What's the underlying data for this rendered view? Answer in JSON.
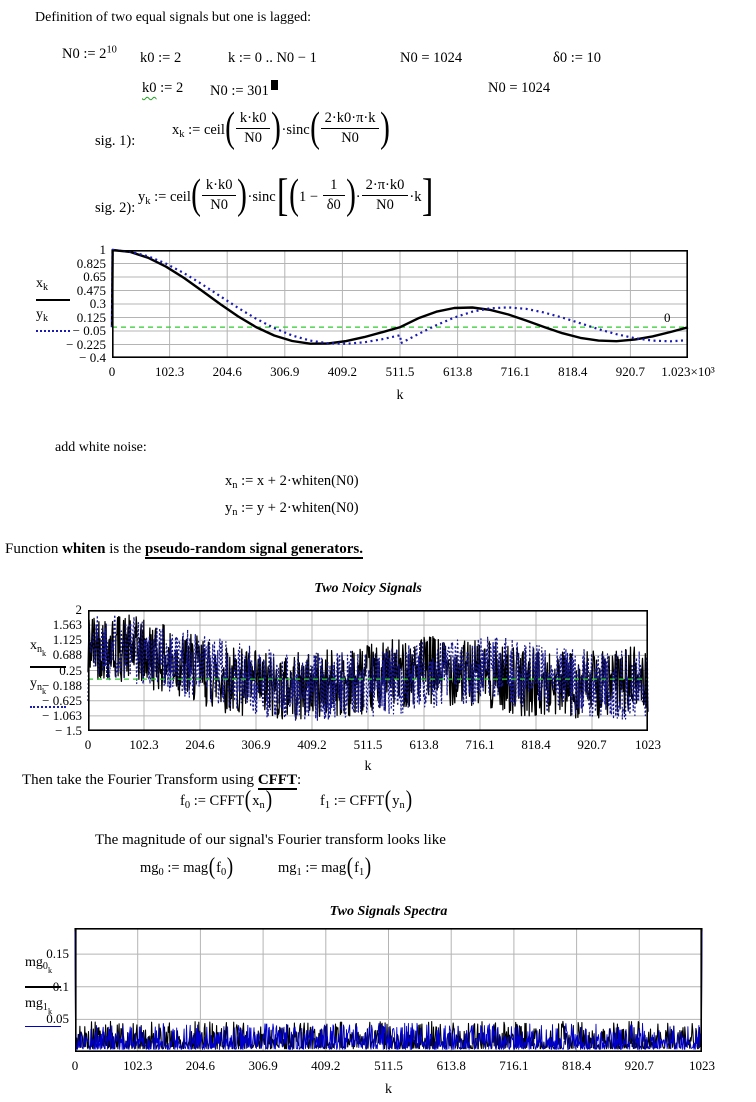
{
  "intro": {
    "title": "Definition of two equal signals but one is lagged:"
  },
  "row1": {
    "n0_base": "N0 := 2",
    "n0_exp": "10",
    "k0": "k0 := 2",
    "k_range": "k := 0 .. N0 − 1",
    "n0_eval": "N0 = 1024",
    "d0": "δ0 := 10"
  },
  "row2": {
    "k0_var": "k0",
    "k0_rest": " := 2",
    "n0_def": "N0 := 301",
    "n0_eval": "N0 = 1024"
  },
  "sig1": {
    "label": "sig. 1):",
    "lhs": "x",
    "lhs_sub": "k",
    "assign": " := ",
    "fn1": "ceil",
    "f1_num": "k·k0",
    "f1_den": "N0",
    "dot": "·",
    "fn2": "sinc",
    "f2_num": "2·k0·π·k",
    "f2_den": "N0"
  },
  "sig2": {
    "label": "sig. 2):",
    "lhs": "y",
    "lhs_sub": "k",
    "assign": " := ",
    "fn1": "ceil",
    "f1_num": "k·k0",
    "f1_den": "N0",
    "dot": "·",
    "fn2": "sinc",
    "one": "1",
    "minus": " − ",
    "frac1_num": "1",
    "frac1_den": "δ0",
    "dot2": "·",
    "frac2_num": "2·π·k0",
    "frac2_den": "N0",
    "k_end": "·k"
  },
  "noise": {
    "heading": "add white noise:",
    "xn_main": "x",
    "xn_sub": "n",
    "xn_rest": " := x + 2·whiten(N0)",
    "yn_main": "y",
    "yn_sub": "n",
    "yn_rest": " := y + 2·whiten(N0)",
    "footer_pre": "Function ",
    "footer_bold": "whiten",
    "footer_mid": " is the ",
    "footer_link": "pseudo-random signal generators."
  },
  "fft": {
    "line_pre": "Then take the Fourier Transform using ",
    "line_bold": "CFFT",
    "line_post": ":",
    "f0_main": "f",
    "f0_sub": "0",
    "f0_op": " := CFFT",
    "f0_arg_main": "x",
    "f0_arg_sub": "n",
    "f1_main": "f",
    "f1_sub": "1",
    "f1_op": " := CFFT",
    "f1_arg_main": "y",
    "f1_arg_sub": "n",
    "mag_line": "The magnitude of our signal's Fourier transform looks like",
    "mg0_main": "mg",
    "mg0_sub": "0",
    "mg0_op": " := mag",
    "mg0_arg_main": "f",
    "mg0_arg_sub": "0",
    "mg1_main": "mg",
    "mg1_sub": "1",
    "mg1_op": " := mag",
    "mg1_arg_main": "f",
    "mg1_arg_sub": "1"
  },
  "chart_data": [
    {
      "type": "line",
      "title": "",
      "xlabel": "k",
      "xlim": [
        0,
        1023
      ],
      "ylim": [
        -0.4,
        1
      ],
      "grid": true,
      "legend_position": "left",
      "xticks": {
        "values": [
          0,
          102.3,
          204.6,
          306.9,
          409.2,
          511.5,
          613.8,
          716.1,
          818.4,
          920.7,
          1023
        ],
        "labels": [
          "0",
          "102.3",
          "204.6",
          "306.9",
          "409.2",
          "511.5",
          "613.8",
          "716.1",
          "818.4",
          "920.7",
          "1.023×10³"
        ]
      },
      "yticks": {
        "values": [
          1,
          0.825,
          0.65,
          0.475,
          0.3,
          0.125,
          -0.05,
          -0.225,
          -0.4
        ],
        "labels": [
          "1",
          "0.825",
          "0.65",
          "0.475",
          "0.3",
          "0.125",
          "− 0.05",
          "− 0.225",
          "− 0.4"
        ]
      },
      "marker": {
        "y": 0,
        "label": "0",
        "color": "#2ecc2e",
        "on_top": false
      },
      "legend": [
        {
          "main": "x",
          "sub": "k"
        },
        {
          "main": "y",
          "sub": "k"
        }
      ],
      "series": [
        {
          "name": "xk",
          "kind": "points",
          "color": "#000000",
          "width": 2.4,
          "dash": null,
          "points": [
            [
              0,
              0
            ],
            [
              1,
              1
            ],
            [
              32,
              0.975
            ],
            [
              64,
              0.9
            ],
            [
              96,
              0.784
            ],
            [
              128,
              0.637
            ],
            [
              160,
              0.47
            ],
            [
              192,
              0.3
            ],
            [
              224,
              0.139
            ],
            [
              256,
              0
            ],
            [
              288,
              -0.108
            ],
            [
              320,
              -0.18
            ],
            [
              352,
              -0.214
            ],
            [
              384,
              -0.212
            ],
            [
              416,
              -0.181
            ],
            [
              448,
              -0.129
            ],
            [
              480,
              -0.065
            ],
            [
              512,
              0
            ],
            [
              544,
              0.115
            ],
            [
              576,
              0.2
            ],
            [
              608,
              0.248
            ],
            [
              640,
              0.255
            ],
            [
              672,
              0.224
            ],
            [
              704,
              0.164
            ],
            [
              736,
              0.085
            ],
            [
              768,
              0
            ],
            [
              800,
              -0.078
            ],
            [
              832,
              -0.139
            ],
            [
              864,
              -0.174
            ],
            [
              896,
              -0.182
            ],
            [
              928,
              -0.162
            ],
            [
              960,
              -0.12
            ],
            [
              992,
              -0.063
            ],
            [
              1023,
              -0.002
            ]
          ]
        },
        {
          "name": "yk",
          "kind": "points",
          "color": "#1a1ab4",
          "width": 2.2,
          "dash": "2 3.5",
          "points": [
            [
              0,
              0
            ],
            [
              1,
              1
            ],
            [
              32,
              0.979
            ],
            [
              64,
              0.919
            ],
            [
              96,
              0.823
            ],
            [
              128,
              0.699
            ],
            [
              160,
              0.555
            ],
            [
              192,
              0.402
            ],
            [
              224,
              0.25
            ],
            [
              256,
              0.109
            ],
            [
              288,
              -0.012
            ],
            [
              320,
              -0.108
            ],
            [
              352,
              -0.175
            ],
            [
              384,
              -0.21
            ],
            [
              416,
              -0.216
            ],
            [
              448,
              -0.197
            ],
            [
              480,
              -0.156
            ],
            [
              512,
              -0.104
            ],
            [
              513,
              -0.208
            ],
            [
              544,
              -0.09
            ],
            [
              576,
              0.025
            ],
            [
              608,
              0.125
            ],
            [
              640,
              0.2
            ],
            [
              672,
              0.244
            ],
            [
              704,
              0.256
            ],
            [
              736,
              0.237
            ],
            [
              768,
              0.189
            ],
            [
              800,
              0.124
            ],
            [
              832,
              0.05
            ],
            [
              864,
              -0.025
            ],
            [
              896,
              -0.092
            ],
            [
              928,
              -0.142
            ],
            [
              960,
              -0.174
            ],
            [
              992,
              -0.183
            ],
            [
              1023,
              -0.169
            ]
          ]
        }
      ]
    },
    {
      "type": "line",
      "title": "Two Noicy Signals",
      "xlabel": "k",
      "xlim": [
        0,
        1023
      ],
      "ylim": [
        -1.5,
        2
      ],
      "grid": true,
      "legend_position": "left",
      "xticks": {
        "values": [
          0,
          102.3,
          204.6,
          306.9,
          409.2,
          511.5,
          613.8,
          716.1,
          818.4,
          920.7,
          1023
        ],
        "labels": [
          "0",
          "102.3",
          "204.6",
          "306.9",
          "409.2",
          "511.5",
          "613.8",
          "716.1",
          "818.4",
          "920.7",
          "1023"
        ]
      },
      "yticks": {
        "values": [
          2,
          1.563,
          1.125,
          0.688,
          0.25,
          -0.188,
          -0.625,
          -1.063,
          -1.5
        ],
        "labels": [
          "2",
          "1.563",
          "1.125",
          "0.688",
          "0.25",
          "− 0.188",
          "− 0.625",
          "− 1.063",
          "− 1.5"
        ]
      },
      "marker": {
        "y": 0,
        "label": "",
        "color": "#2ecc2e",
        "on_top": true
      },
      "legend": [
        {
          "main": "x",
          "sub": "n",
          "sub2": "k"
        },
        {
          "main": "y",
          "sub": "n",
          "sub2": "k"
        }
      ],
      "series": [
        {
          "name": "xn",
          "kind": "noisy",
          "base": [
            0,
            0
          ],
          "color": "#000000",
          "width": 1.3,
          "dash": null,
          "noise_amp": 1.0,
          "seed": 42,
          "n": 1024
        },
        {
          "name": "yn",
          "kind": "noisy",
          "base": [
            0,
            1
          ],
          "color": "#15158c",
          "width": 1.2,
          "dash": "2 2",
          "noise_amp": 1.0,
          "seed": 1337,
          "n": 1024
        }
      ]
    },
    {
      "type": "line",
      "title": "Two Signals Spectra",
      "xlabel": "k",
      "xlim": [
        0,
        1023
      ],
      "ylim": [
        0,
        0.19
      ],
      "grid": true,
      "legend_position": "left",
      "xticks": {
        "values": [
          0,
          102.3,
          204.6,
          306.9,
          409.2,
          511.5,
          613.8,
          716.1,
          818.4,
          920.7,
          1023
        ],
        "labels": [
          "0",
          "102.3",
          "204.6",
          "306.9",
          "409.2",
          "511.5",
          "613.8",
          "716.1",
          "818.4",
          "920.7",
          "1023"
        ]
      },
      "yticks": {
        "values": [
          0.15,
          0.1,
          0.05
        ],
        "labels": [
          "0.15",
          "0.1",
          "0.05"
        ]
      },
      "marker": null,
      "legend": [
        {
          "main": "mg",
          "sub": "0",
          "sub2": "k"
        },
        {
          "main": "mg",
          "sub": "1",
          "sub2": "k"
        }
      ],
      "series": [
        {
          "name": "mg0",
          "kind": "spectrum",
          "color": "#000000",
          "width": 1.1,
          "seed": 5,
          "floor": 0.005,
          "amp": 0.042,
          "spikes": [
            [
              0,
              0.19
            ],
            [
              1023,
              0.19
            ]
          ],
          "n": 1024
        },
        {
          "name": "mg1",
          "kind": "spectrum",
          "color": "#0000cc",
          "width": 0.9,
          "seed": 17,
          "floor": 0.004,
          "amp": 0.04,
          "spikes": [
            [
              0,
              0.185
            ],
            [
              1023,
              0.185
            ]
          ],
          "n": 1024
        }
      ]
    }
  ]
}
